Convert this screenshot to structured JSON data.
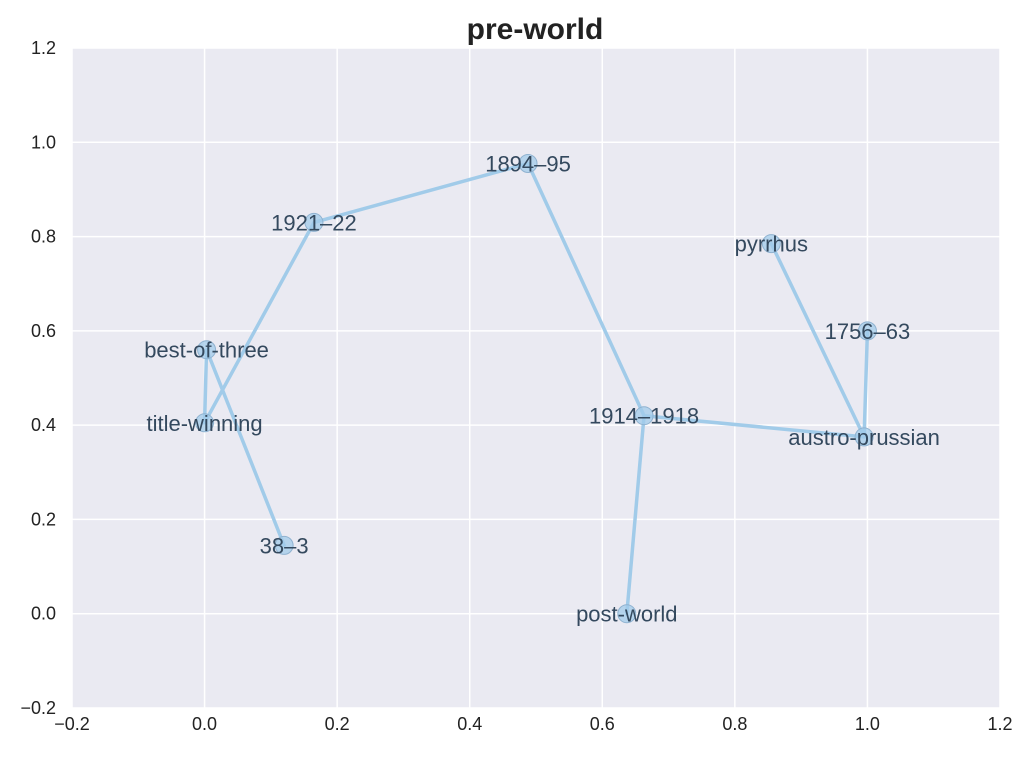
{
  "chart_data": {
    "type": "scatter",
    "title": "pre-world",
    "xlabel": "",
    "ylabel": "",
    "xlim": [
      -0.2,
      1.2
    ],
    "ylim": [
      -0.2,
      1.2
    ],
    "xticks": [
      "−0.2",
      "0.0",
      "0.2",
      "0.4",
      "0.6",
      "0.8",
      "1.0",
      "1.2"
    ],
    "yticks": [
      "−0.2",
      "0.0",
      "0.2",
      "0.4",
      "0.6",
      "0.8",
      "1.0",
      "1.2"
    ],
    "grid": true,
    "colors": {
      "background": "#eaeaf2",
      "grid": "#ffffff",
      "series": "#a1cbe9",
      "marker_edge": "#8fb2d0",
      "label": "#34495e"
    },
    "points": [
      {
        "label": "38–3",
        "x": 0.12,
        "y": 0.145
      },
      {
        "label": "best-of-three",
        "x": 0.003,
        "y": 0.56
      },
      {
        "label": "title-winning",
        "x": 0.0,
        "y": 0.405
      },
      {
        "label": "1921–22",
        "x": 0.165,
        "y": 0.83
      },
      {
        "label": "1894–95",
        "x": 0.488,
        "y": 0.955
      },
      {
        "label": "1914–1918",
        "x": 0.663,
        "y": 0.42
      },
      {
        "label": "post-world",
        "x": 0.637,
        "y": 0.0
      },
      {
        "label": "austro-prussian",
        "x": 0.995,
        "y": 0.375
      },
      {
        "label": "1756–63",
        "x": 1.0,
        "y": 0.6
      },
      {
        "label": "pyrrhus",
        "x": 0.855,
        "y": 0.785
      }
    ],
    "paths": [
      [
        "38–3",
        "best-of-three",
        "title-winning",
        "1921–22",
        "1894–95",
        "1914–1918",
        "post-world"
      ],
      [
        "1914–1918",
        "austro-prussian",
        "1756–63"
      ],
      [
        "austro-prussian",
        "pyrrhus"
      ]
    ]
  }
}
